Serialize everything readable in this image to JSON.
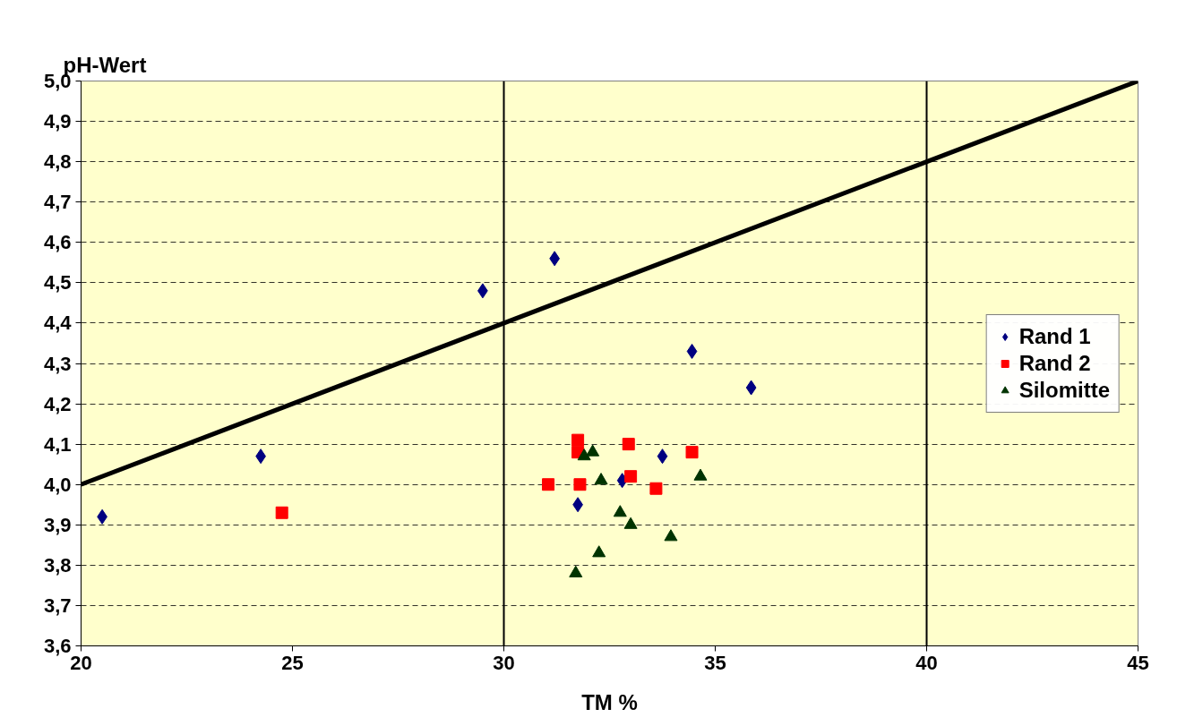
{
  "chart_data": {
    "type": "scatter",
    "xlabel": "TM %",
    "ylabel": "pH-Wert",
    "xlim": [
      20,
      45
    ],
    "xticks": [
      20,
      25,
      30,
      35,
      40,
      45
    ],
    "ylim": [
      3.6,
      5.0
    ],
    "yticks": [
      {
        "value": 3.6,
        "label": "3,6"
      },
      {
        "value": 3.7,
        "label": "3,7"
      },
      {
        "value": 3.8,
        "label": "3,8"
      },
      {
        "value": 3.9,
        "label": "3,9"
      },
      {
        "value": 4.0,
        "label": "4,0"
      },
      {
        "value": 4.1,
        "label": "4,1"
      },
      {
        "value": 4.2,
        "label": "4,2"
      },
      {
        "value": 4.3,
        "label": "4,3"
      },
      {
        "value": 4.4,
        "label": "4,4"
      },
      {
        "value": 4.5,
        "label": "4,5"
      },
      {
        "value": 4.6,
        "label": "4,6"
      },
      {
        "value": 4.7,
        "label": "4,7"
      },
      {
        "value": 4.8,
        "label": "4,8"
      },
      {
        "value": 4.9,
        "label": "4,9"
      },
      {
        "value": 5.0,
        "label": "5,0"
      }
    ],
    "grid": "y",
    "legend": "right",
    "series": [
      {
        "name": "Rand 1",
        "color": "#000080",
        "marker": "diamond",
        "x": [
          20.5,
          24.25,
          29.5,
          31.2,
          31.75,
          32.8,
          33.75,
          34.45,
          35.85
        ],
        "values": [
          3.92,
          4.07,
          4.48,
          4.56,
          3.95,
          4.01,
          4.07,
          4.33,
          4.24
        ]
      },
      {
        "name": "Rand 2",
        "color": "#ff0000",
        "marker": "square",
        "x": [
          24.75,
          31.05,
          31.75,
          31.75,
          31.8,
          32.95,
          33.0,
          33.6,
          34.45
        ],
        "values": [
          3.93,
          4.0,
          4.11,
          4.08,
          4.0,
          4.1,
          4.02,
          3.99,
          4.08
        ]
      },
      {
        "name": "Silomitte",
        "color": "#003300",
        "marker": "triangle",
        "x": [
          31.9,
          32.1,
          32.3,
          32.75,
          33.0,
          32.25,
          31.7,
          33.95,
          34.65
        ],
        "values": [
          4.07,
          4.08,
          4.01,
          3.93,
          3.9,
          3.83,
          3.78,
          3.87,
          4.02
        ]
      },
      {
        "type": "line",
        "color": "#000000",
        "x": [
          20,
          45
        ],
        "values": [
          4.0,
          5.0
        ]
      }
    ],
    "ref_lines": [
      {
        "axis": "x",
        "value": 30,
        "color": "#000000"
      },
      {
        "axis": "x",
        "value": 40,
        "color": "#000000"
      }
    ]
  }
}
